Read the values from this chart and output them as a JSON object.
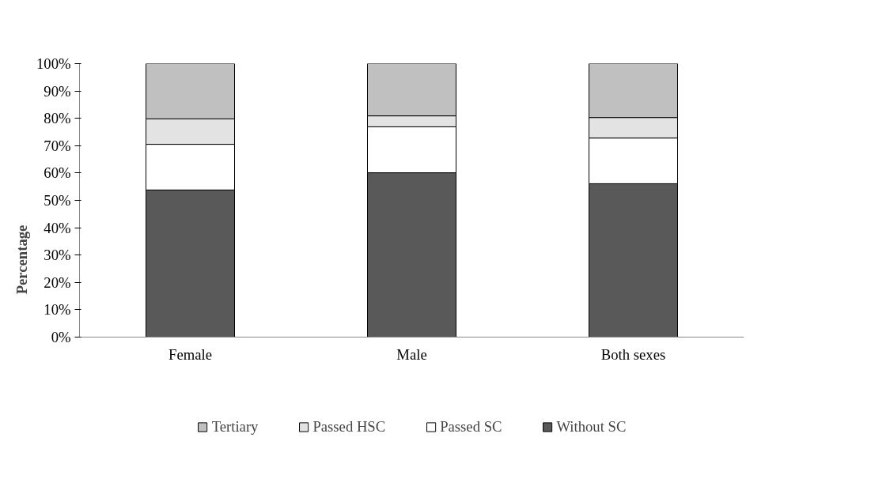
{
  "chart_data": {
    "type": "bar",
    "stacked": true,
    "ylabel": "Percentage",
    "categories": [
      "Female",
      "Male",
      "Both sexes"
    ],
    "series": [
      {
        "name": "Without SC",
        "color": "#595959",
        "values": [
          53.8,
          60.1,
          56.1
        ]
      },
      {
        "name": "Passed SC",
        "color": "#ffffff",
        "values": [
          16.7,
          16.8,
          16.7
        ]
      },
      {
        "name": "Passed HSC",
        "color": "#e3e3e3",
        "values": [
          9.3,
          4.0,
          7.5
        ]
      },
      {
        "name": "Tertiary",
        "color": "#c0c0c0",
        "values": [
          20.2,
          19.1,
          19.7
        ]
      }
    ],
    "ylim": [
      0,
      100
    ],
    "yticks": [
      {
        "value": 0,
        "label": "0%"
      },
      {
        "value": 10,
        "label": "10%"
      },
      {
        "value": 20,
        "label": "20%"
      },
      {
        "value": 30,
        "label": "30%"
      },
      {
        "value": 40,
        "label": "40%"
      },
      {
        "value": 50,
        "label": "50%"
      },
      {
        "value": 60,
        "label": "60%"
      },
      {
        "value": 70,
        "label": "70%"
      },
      {
        "value": 80,
        "label": "80%"
      },
      {
        "value": 90,
        "label": "90%"
      },
      {
        "value": 100,
        "label": "100%"
      }
    ],
    "grid": false,
    "legend": "bottom"
  }
}
